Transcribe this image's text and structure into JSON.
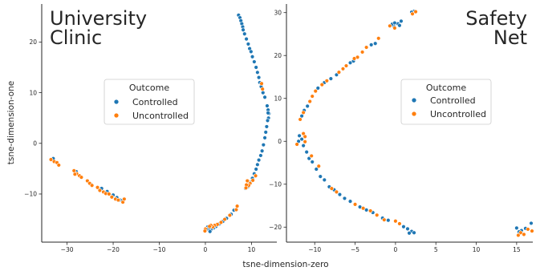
{
  "chart_data": [
    {
      "type": "scatter",
      "title_lines": [
        "University",
        "Clinic"
      ],
      "xlabel": "tsne-dimension-zero",
      "ylabel": "tsne-dimension-one",
      "xlim": [
        -35.5,
        15.5
      ],
      "ylim": [
        -19.5,
        27.5
      ],
      "xticks": [
        -30,
        -20,
        -10,
        0,
        10
      ],
      "yticks": [
        -10,
        0,
        10,
        20
      ],
      "grid": false,
      "legend": {
        "title": "Outcome",
        "position": "center"
      },
      "series": [
        {
          "name": "Controlled",
          "color": "#1f77b4",
          "points": [
            [
              7.2,
              25.3
            ],
            [
              7.5,
              24.8
            ],
            [
              7.7,
              24.2
            ],
            [
              7.9,
              23.6
            ],
            [
              8.1,
              23.0
            ],
            [
              8.2,
              22.4
            ],
            [
              8.5,
              21.6
            ],
            [
              8.9,
              20.6
            ],
            [
              9.3,
              19.6
            ],
            [
              9.6,
              18.7
            ],
            [
              9.9,
              18.1
            ],
            [
              10.2,
              17.1
            ],
            [
              10.6,
              16.1
            ],
            [
              11.0,
              15.0
            ],
            [
              11.3,
              14.0
            ],
            [
              11.6,
              13.0
            ],
            [
              11.8,
              12.0
            ],
            [
              12.1,
              11.2
            ],
            [
              12.5,
              10.0
            ],
            [
              12.9,
              9.1
            ],
            [
              13.4,
              7.4
            ],
            [
              13.6,
              6.6
            ],
            [
              13.8,
              5.9
            ],
            [
              13.7,
              5.0
            ],
            [
              13.5,
              4.5
            ],
            [
              13.6,
              6.0
            ],
            [
              13.3,
              3.3
            ],
            [
              13.1,
              2.2
            ],
            [
              12.9,
              1.1
            ],
            [
              12.6,
              -0.3
            ],
            [
              12.3,
              -1.5
            ],
            [
              12.0,
              -2.4
            ],
            [
              11.6,
              -3.3
            ],
            [
              11.3,
              -4.2
            ],
            [
              11.0,
              -5.1
            ],
            [
              10.6,
              -6.0
            ],
            [
              10.2,
              -6.9
            ],
            [
              9.8,
              -7.7
            ],
            [
              9.3,
              -8.5
            ],
            [
              8.7,
              -8.9
            ],
            [
              6.2,
              -13.2
            ],
            [
              5.6,
              -14.0
            ],
            [
              4.6,
              -14.8
            ],
            [
              3.8,
              -15.4
            ],
            [
              3.0,
              -15.9
            ],
            [
              2.3,
              -16.4
            ],
            [
              1.8,
              -16.7
            ],
            [
              1.3,
              -16.9
            ],
            [
              0.8,
              -17.1
            ],
            [
              0.5,
              -16.5
            ],
            [
              1.0,
              -17.4
            ],
            [
              0.3,
              -16.9
            ],
            [
              -22.5,
              -8.9
            ],
            [
              -21.3,
              -9.5
            ],
            [
              -20.0,
              -10.2
            ],
            [
              -19.2,
              -10.7
            ],
            [
              -18.5,
              -11.2
            ],
            [
              -18.0,
              -11.3
            ],
            [
              -28.0,
              -5.6
            ],
            [
              -24.8,
              -8.1
            ],
            [
              -33.0,
              -3.0
            ]
          ]
        },
        {
          "name": "Uncontrolled",
          "color": "#ff7f0e",
          "points": [
            [
              12.2,
              11.8
            ],
            [
              12.4,
              10.7
            ],
            [
              10.9,
              -6.4
            ],
            [
              10.3,
              -7.3
            ],
            [
              9.7,
              -7.9
            ],
            [
              9.4,
              -8.3
            ],
            [
              8.9,
              -8.2
            ],
            [
              9.1,
              -7.4
            ],
            [
              8.8,
              -8.8
            ],
            [
              6.9,
              -12.4
            ],
            [
              6.7,
              -13.1
            ],
            [
              5.3,
              -14.2
            ],
            [
              4.2,
              -15.0
            ],
            [
              3.4,
              -15.6
            ],
            [
              2.6,
              -16.0
            ],
            [
              2.0,
              -16.2
            ],
            [
              1.6,
              -16.5
            ],
            [
              0.0,
              -16.9
            ],
            [
              -0.1,
              -17.3
            ],
            [
              1.2,
              -16.2
            ],
            [
              0.9,
              -16.4
            ],
            [
              -33.5,
              -3.2
            ],
            [
              -32.8,
              -3.6
            ],
            [
              -32.2,
              -3.8
            ],
            [
              -31.8,
              -4.3
            ],
            [
              -28.5,
              -5.4
            ],
            [
              -27.9,
              -6.0
            ],
            [
              -27.3,
              -6.4
            ],
            [
              -26.9,
              -6.7
            ],
            [
              -28.3,
              -6.1
            ],
            [
              -25.6,
              -7.4
            ],
            [
              -25.1,
              -7.9
            ],
            [
              -24.6,
              -8.3
            ],
            [
              -23.4,
              -8.7
            ],
            [
              -22.9,
              -9.3
            ],
            [
              -22.1,
              -9.6
            ],
            [
              -21.6,
              -9.9
            ],
            [
              -20.9,
              -10.0
            ],
            [
              -20.3,
              -10.6
            ],
            [
              -19.5,
              -11.0
            ],
            [
              -18.9,
              -11.2
            ],
            [
              -17.9,
              -11.6
            ],
            [
              -17.6,
              -11.0
            ]
          ]
        }
      ]
    },
    {
      "type": "scatter",
      "title_lines": [
        "Safety",
        "Net"
      ],
      "xlabel": "",
      "ylabel": "",
      "xlim": [
        -13.5,
        17.0
      ],
      "ylim": [
        -23.5,
        32.0
      ],
      "xticks": [
        -10,
        -5,
        0,
        5,
        10,
        15
      ],
      "yticks": [
        -20,
        -10,
        0,
        10,
        20,
        30
      ],
      "grid": false,
      "legend": {
        "title": "Outcome",
        "position": "center-right"
      },
      "series": [
        {
          "name": "Controlled",
          "color": "#1f77b4",
          "points": [
            [
              2.3,
              30.3
            ],
            [
              2.0,
              30.1
            ],
            [
              0.7,
              28.0
            ],
            [
              0.3,
              27.4
            ],
            [
              -0.2,
              26.8
            ],
            [
              -0.4,
              27.3
            ],
            [
              -0.1,
              27.6
            ],
            [
              0.5,
              27.0
            ],
            [
              -2.5,
              22.8
            ],
            [
              -3.0,
              22.5
            ],
            [
              -5.6,
              18.3
            ],
            [
              -5.2,
              18.7
            ],
            [
              -7.3,
              15.5
            ],
            [
              -8.0,
              14.6
            ],
            [
              -8.8,
              13.7
            ],
            [
              -9.6,
              12.4
            ],
            [
              -10.9,
              8.2
            ],
            [
              -11.3,
              7.2
            ],
            [
              -11.6,
              5.9
            ],
            [
              -11.9,
              1.3
            ],
            [
              -11.6,
              0.5
            ],
            [
              -12.0,
              0.0
            ],
            [
              -11.4,
              -1.0
            ],
            [
              -11.0,
              -2.5
            ],
            [
              -10.7,
              -4.0
            ],
            [
              -10.3,
              -4.8
            ],
            [
              -9.8,
              -6.5
            ],
            [
              -9.3,
              -8.2
            ],
            [
              -8.8,
              -9.0
            ],
            [
              -8.2,
              -10.6
            ],
            [
              -7.6,
              -11.3
            ],
            [
              -6.9,
              -12.4
            ],
            [
              -6.3,
              -13.3
            ],
            [
              -5.6,
              -14.0
            ],
            [
              -4.4,
              -15.3
            ],
            [
              -3.6,
              -16.0
            ],
            [
              -2.8,
              -16.6
            ],
            [
              -1.6,
              -17.9
            ],
            [
              -0.9,
              -18.4
            ],
            [
              1.0,
              -19.9
            ],
            [
              1.5,
              -20.4
            ],
            [
              2.0,
              -21.0
            ],
            [
              1.7,
              -21.4
            ],
            [
              2.3,
              -21.3
            ],
            [
              16.8,
              -19.1
            ],
            [
              16.1,
              -20.3
            ],
            [
              15.6,
              -20.8
            ],
            [
              15.3,
              -21.1
            ],
            [
              15.0,
              -20.2
            ]
          ]
        },
        {
          "name": "Uncontrolled",
          "color": "#ff7f0e",
          "points": [
            [
              2.5,
              30.2
            ],
            [
              2.1,
              29.7
            ],
            [
              -0.7,
              26.9
            ],
            [
              -0.1,
              26.4
            ],
            [
              -2.1,
              24.0
            ],
            [
              -3.6,
              21.9
            ],
            [
              -4.1,
              20.8
            ],
            [
              -4.7,
              19.6
            ],
            [
              -5.1,
              19.3
            ],
            [
              -6.1,
              17.6
            ],
            [
              -6.5,
              16.9
            ],
            [
              -7.0,
              16.1
            ],
            [
              -8.5,
              14.1
            ],
            [
              -9.1,
              13.2
            ],
            [
              -9.9,
              11.7
            ],
            [
              -10.3,
              10.5
            ],
            [
              -10.6,
              9.3
            ],
            [
              -11.4,
              6.7
            ],
            [
              -11.8,
              5.1
            ],
            [
              -11.2,
              -0.1
            ],
            [
              -12.2,
              -0.7
            ],
            [
              -11.4,
              1.8
            ],
            [
              -11.2,
              1.1
            ],
            [
              -10.4,
              -3.4
            ],
            [
              -9.5,
              -5.8
            ],
            [
              -7.9,
              -11.0
            ],
            [
              -7.3,
              -11.8
            ],
            [
              -5.0,
              -14.7
            ],
            [
              -4.0,
              -15.6
            ],
            [
              -3.1,
              -16.2
            ],
            [
              -2.3,
              -17.2
            ],
            [
              -1.4,
              -18.3
            ],
            [
              0.0,
              -18.6
            ],
            [
              0.5,
              -19.2
            ],
            [
              16.4,
              -20.5
            ],
            [
              15.5,
              -21.3
            ],
            [
              15.9,
              -21.7
            ],
            [
              15.2,
              -21.9
            ],
            [
              16.9,
              -20.9
            ]
          ]
        }
      ]
    }
  ]
}
